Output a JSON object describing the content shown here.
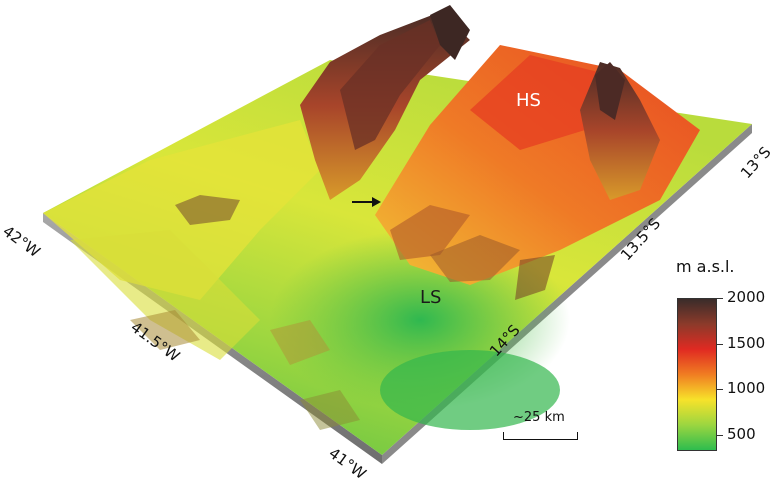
{
  "map": {
    "region_labels": {
      "high": "HS",
      "low": "LS"
    },
    "longitude_labels": [
      "42°W",
      "41.5°W",
      "41°W"
    ],
    "latitude_labels": [
      "13°S",
      "13.5°S",
      "14°S"
    ],
    "legend": {
      "title": "m a.s.l.",
      "ticks": [
        "2000",
        "1500",
        "1000",
        "500"
      ],
      "colors": [
        "#3a2c2a",
        "#8c3a2a",
        "#e02a22",
        "#f07d22",
        "#f7e22a",
        "#9cd640",
        "#2ebd4e"
      ]
    },
    "scale_bar": {
      "label": "~25 km"
    },
    "annotation": {
      "icon": "arrow-right-icon"
    }
  }
}
